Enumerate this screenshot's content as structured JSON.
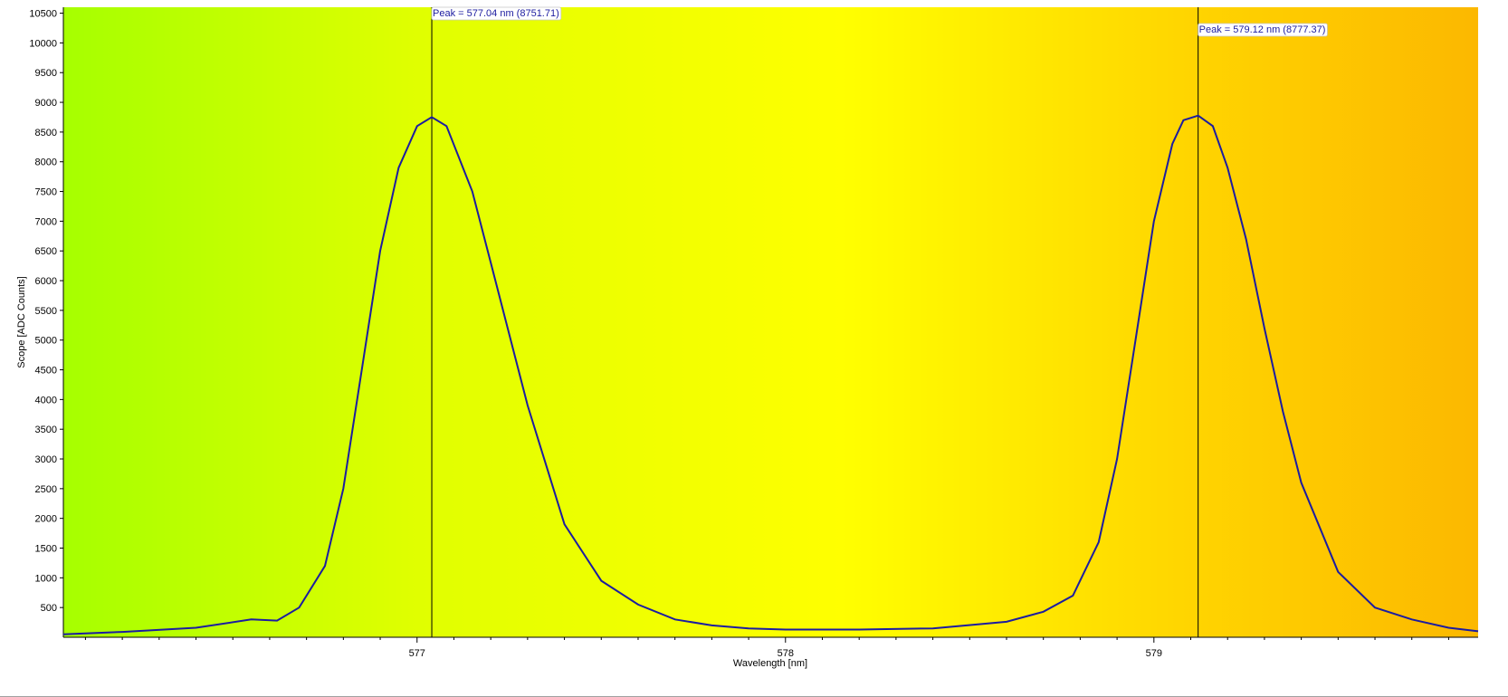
{
  "chart_data": {
    "type": "line",
    "xlabel": "Wavelength [nm]",
    "ylabel": "Scope [ADC Counts]",
    "xlim": [
      576.04,
      579.88
    ],
    "ylim": [
      0,
      10600
    ],
    "x_ticks": [
      577,
      578,
      579
    ],
    "y_ticks": [
      500,
      1000,
      1500,
      2000,
      2500,
      3000,
      3500,
      4000,
      4500,
      5000,
      5500,
      6000,
      6500,
      7000,
      7500,
      8000,
      8500,
      9000,
      9500,
      10000,
      10500
    ],
    "background_gradient": [
      "#a6ff00",
      "#e0ff00",
      "#ffff00",
      "#ffd400",
      "#fcb800"
    ],
    "line_color": "#1c1ca0",
    "grid": false,
    "series": [
      {
        "x": [
          576.04,
          576.2,
          576.4,
          576.55,
          576.62,
          576.68,
          576.75,
          576.8,
          576.85,
          576.9,
          576.95,
          577.0,
          577.04,
          577.08,
          577.15,
          577.2,
          577.3,
          577.4,
          577.5,
          577.6,
          577.7,
          577.8,
          577.9,
          578.0,
          578.2,
          578.4,
          578.6,
          578.7,
          578.78,
          578.85,
          578.9,
          578.95,
          579.0,
          579.05,
          579.08,
          579.12,
          579.16,
          579.2,
          579.25,
          579.3,
          579.35,
          579.4,
          579.5,
          579.6,
          579.7,
          579.8,
          579.88
        ],
        "y": [
          50,
          90,
          160,
          300,
          280,
          500,
          1200,
          2500,
          4500,
          6500,
          7900,
          8600,
          8751,
          8600,
          7500,
          6300,
          3900,
          1900,
          950,
          550,
          300,
          200,
          150,
          130,
          130,
          150,
          260,
          430,
          700,
          1600,
          3000,
          5000,
          7000,
          8300,
          8700,
          8777,
          8600,
          7900,
          6700,
          5200,
          3800,
          2600,
          1100,
          500,
          300,
          160,
          100
        ]
      }
    ],
    "annotations": [
      {
        "text": "Peak = 577.04 nm (8751.71)",
        "x": 577.04
      },
      {
        "text": "Peak = 579.12 nm (8777.37)",
        "x": 579.12
      }
    ]
  }
}
